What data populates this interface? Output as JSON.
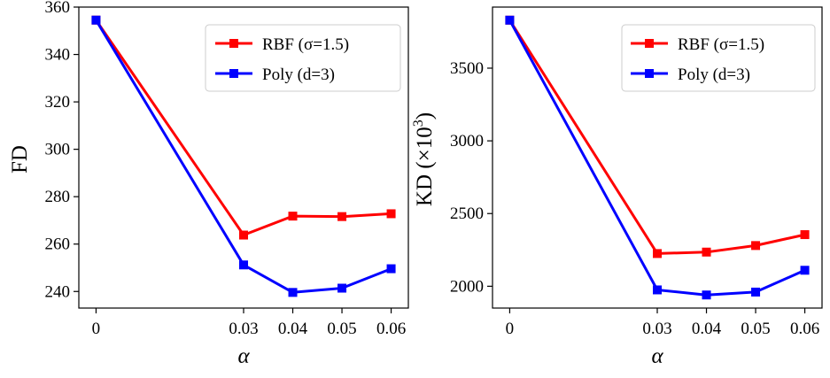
{
  "chart_data": [
    {
      "type": "line",
      "x": [
        0,
        0.03,
        0.04,
        0.05,
        0.06
      ],
      "x_tick_labels": [
        "0",
        "0.03",
        "0.04",
        "0.05",
        "0.06"
      ],
      "xlabel": "α",
      "ylabel": "FD",
      "ylim": [
        233,
        360
      ],
      "y_ticks": [
        240,
        260,
        280,
        300,
        320,
        340,
        360
      ],
      "y_tick_labels": [
        "240",
        "260",
        "280",
        "300",
        "320",
        "340",
        "360"
      ],
      "legend_position": "top-right",
      "series": [
        {
          "name": "RBF (σ=1.5)",
          "color": "#ff0000",
          "values": [
            354.5,
            263.8,
            271.8,
            271.6,
            272.8
          ]
        },
        {
          "name": "Poly (d=3)",
          "color": "#0000ff",
          "values": [
            354.5,
            251.2,
            239.6,
            241.4,
            249.6
          ]
        }
      ]
    },
    {
      "type": "line",
      "x": [
        0,
        0.03,
        0.04,
        0.05,
        0.06
      ],
      "x_tick_labels": [
        "0",
        "0.03",
        "0.04",
        "0.05",
        "0.06"
      ],
      "xlabel": "α",
      "ylabel_main": "KD (×10",
      "ylabel_sup": "3",
      "ylabel_end": ")",
      "ylim": [
        1850,
        3920
      ],
      "y_ticks": [
        2000,
        2500,
        3000,
        3500
      ],
      "y_tick_labels": [
        "2000",
        "2500",
        "3000",
        "3500"
      ],
      "legend_position": "top-right",
      "series": [
        {
          "name": "RBF (σ=1.5)",
          "color": "#ff0000",
          "values": [
            3830,
            2225,
            2235,
            2280,
            2355
          ]
        },
        {
          "name": "Poly (d=3)",
          "color": "#0000ff",
          "values": [
            3830,
            1975,
            1940,
            1960,
            2110
          ]
        }
      ]
    }
  ]
}
